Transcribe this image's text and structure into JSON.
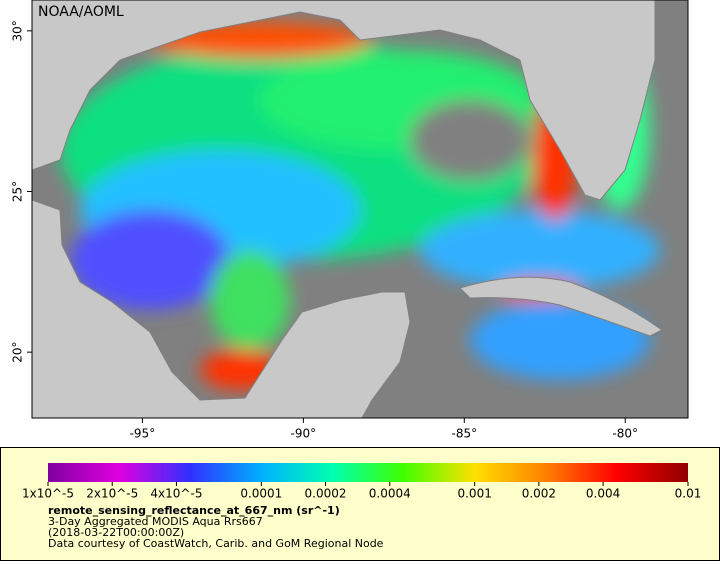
{
  "map": {
    "title": "NOAA/AOML",
    "xlim": [
      -98.43,
      -78.05
    ],
    "ylim": [
      17.95,
      30.96
    ],
    "xticks": [
      {
        "value": -95,
        "label": "-95°"
      },
      {
        "value": -90,
        "label": "-90°"
      },
      {
        "value": -85,
        "label": "-85°"
      },
      {
        "value": -80,
        "label": "-80°"
      }
    ],
    "yticks": [
      {
        "value": 20,
        "label": "20°"
      },
      {
        "value": 25,
        "label": "25°"
      },
      {
        "value": 30,
        "label": "30°"
      }
    ]
  },
  "colorbar": {
    "scale": "log",
    "lim": [
      1e-05,
      0.01
    ],
    "colors": [
      "#7f00a0",
      "#e000e0",
      "#3030ff",
      "#00b0ff",
      "#00ffb0",
      "#40ff00",
      "#ffe000",
      "#ff8000",
      "#ff0000",
      "#900000"
    ],
    "ticks": [
      {
        "value": 1e-05,
        "label": "1x10^-5"
      },
      {
        "value": 2e-05,
        "label": "2x10^-5"
      },
      {
        "value": 4e-05,
        "label": "4x10^-5"
      },
      {
        "value": 0.0001,
        "label": "0.0001"
      },
      {
        "value": 0.0002,
        "label": "0.0002"
      },
      {
        "value": 0.0004,
        "label": "0.0004"
      },
      {
        "value": 0.001,
        "label": "0.001"
      },
      {
        "value": 0.002,
        "label": "0.002"
      },
      {
        "value": 0.004,
        "label": "0.004"
      },
      {
        "value": 0.01,
        "label": "0.01"
      }
    ]
  },
  "legend": {
    "variable": "remote_sensing_reflectance_at_667_nm (sr^-1)",
    "lines": [
      "3-Day Aggregated MODIS Aqua Rrs667",
      "(2018-03-22T00:00:00Z)",
      "Data courtesy of CoastWatch, Carib. and GoM Regional Node"
    ]
  }
}
